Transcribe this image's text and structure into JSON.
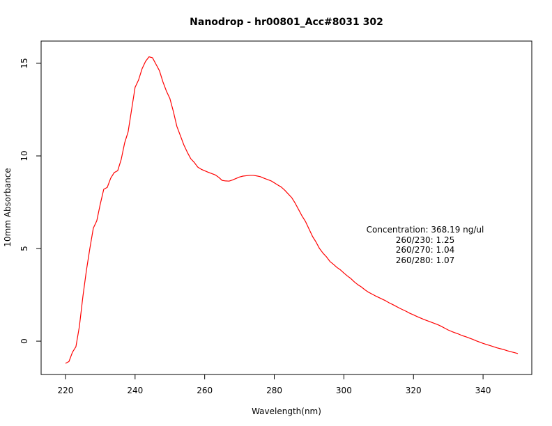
{
  "chart_data": {
    "type": "line",
    "title": "Nanodrop - hr00801_Acc#8031 302",
    "xlabel": "Wavelength(nm)",
    "ylabel": "10mm Absorbance",
    "xlim": [
      213,
      354
    ],
    "ylim": [
      -1.8,
      16.2
    ],
    "x_ticks": [
      220,
      240,
      260,
      280,
      300,
      320,
      340
    ],
    "y_ticks": [
      0,
      5,
      10,
      15
    ],
    "grid": false,
    "legend": "none",
    "series": [
      {
        "color": "#ff0000",
        "x": [
          220,
          221,
          222,
          223,
          224,
          225,
          226,
          227,
          228,
          229,
          230,
          231,
          232,
          233,
          234,
          235,
          236,
          237,
          238,
          239,
          240,
          241,
          242,
          243,
          244,
          245,
          246,
          247,
          248,
          249,
          250,
          251,
          252,
          253,
          254,
          255,
          256,
          257,
          258,
          259,
          260,
          261,
          262,
          263,
          264,
          265,
          266,
          267,
          268,
          269,
          270,
          271,
          272,
          273,
          274,
          275,
          276,
          277,
          278,
          279,
          280,
          281,
          282,
          283,
          284,
          285,
          286,
          287,
          288,
          289,
          290,
          291,
          292,
          293,
          294,
          295,
          296,
          297,
          298,
          299,
          300,
          301,
          302,
          303,
          304,
          305,
          306,
          307,
          308,
          309,
          310,
          311,
          312,
          313,
          314,
          315,
          316,
          317,
          318,
          319,
          320,
          321,
          322,
          323,
          324,
          325,
          326,
          327,
          328,
          329,
          330,
          331,
          332,
          333,
          334,
          335,
          336,
          337,
          338,
          339,
          340,
          341,
          342,
          343,
          344,
          345,
          346,
          347,
          348,
          349,
          350
        ],
        "y": [
          -1.2,
          -1.1,
          -0.6,
          -0.3,
          0.8,
          2.4,
          3.8,
          5.0,
          6.1,
          6.5,
          7.4,
          8.2,
          8.3,
          8.8,
          9.1,
          9.2,
          9.8,
          10.7,
          11.3,
          12.5,
          13.7,
          14.1,
          14.7,
          15.1,
          15.35,
          15.3,
          14.95,
          14.6,
          14.0,
          13.5,
          13.1,
          12.4,
          11.6,
          11.1,
          10.6,
          10.2,
          9.85,
          9.65,
          9.4,
          9.28,
          9.2,
          9.12,
          9.05,
          8.98,
          8.85,
          8.68,
          8.65,
          8.64,
          8.7,
          8.78,
          8.86,
          8.91,
          8.93,
          8.95,
          8.95,
          8.92,
          8.88,
          8.8,
          8.73,
          8.66,
          8.55,
          8.43,
          8.32,
          8.15,
          7.95,
          7.75,
          7.45,
          7.1,
          6.75,
          6.45,
          6.05,
          5.65,
          5.35,
          5.0,
          4.75,
          4.55,
          4.3,
          4.15,
          3.98,
          3.85,
          3.68,
          3.52,
          3.38,
          3.2,
          3.05,
          2.93,
          2.78,
          2.65,
          2.55,
          2.45,
          2.36,
          2.27,
          2.18,
          2.07,
          1.98,
          1.88,
          1.78,
          1.69,
          1.6,
          1.5,
          1.42,
          1.33,
          1.25,
          1.17,
          1.1,
          1.03,
          0.96,
          0.89,
          0.8,
          0.7,
          0.6,
          0.52,
          0.45,
          0.38,
          0.3,
          0.24,
          0.17,
          0.1,
          0.02,
          -0.05,
          -0.12,
          -0.18,
          -0.24,
          -0.3,
          -0.36,
          -0.41,
          -0.46,
          -0.52,
          -0.57,
          -0.62,
          -0.67
        ]
      }
    ],
    "annotations": [
      "Concentration: 368.19 ng/ul",
      "260/230: 1.25",
      "260/270: 1.04",
      "260/280: 1.07"
    ]
  }
}
